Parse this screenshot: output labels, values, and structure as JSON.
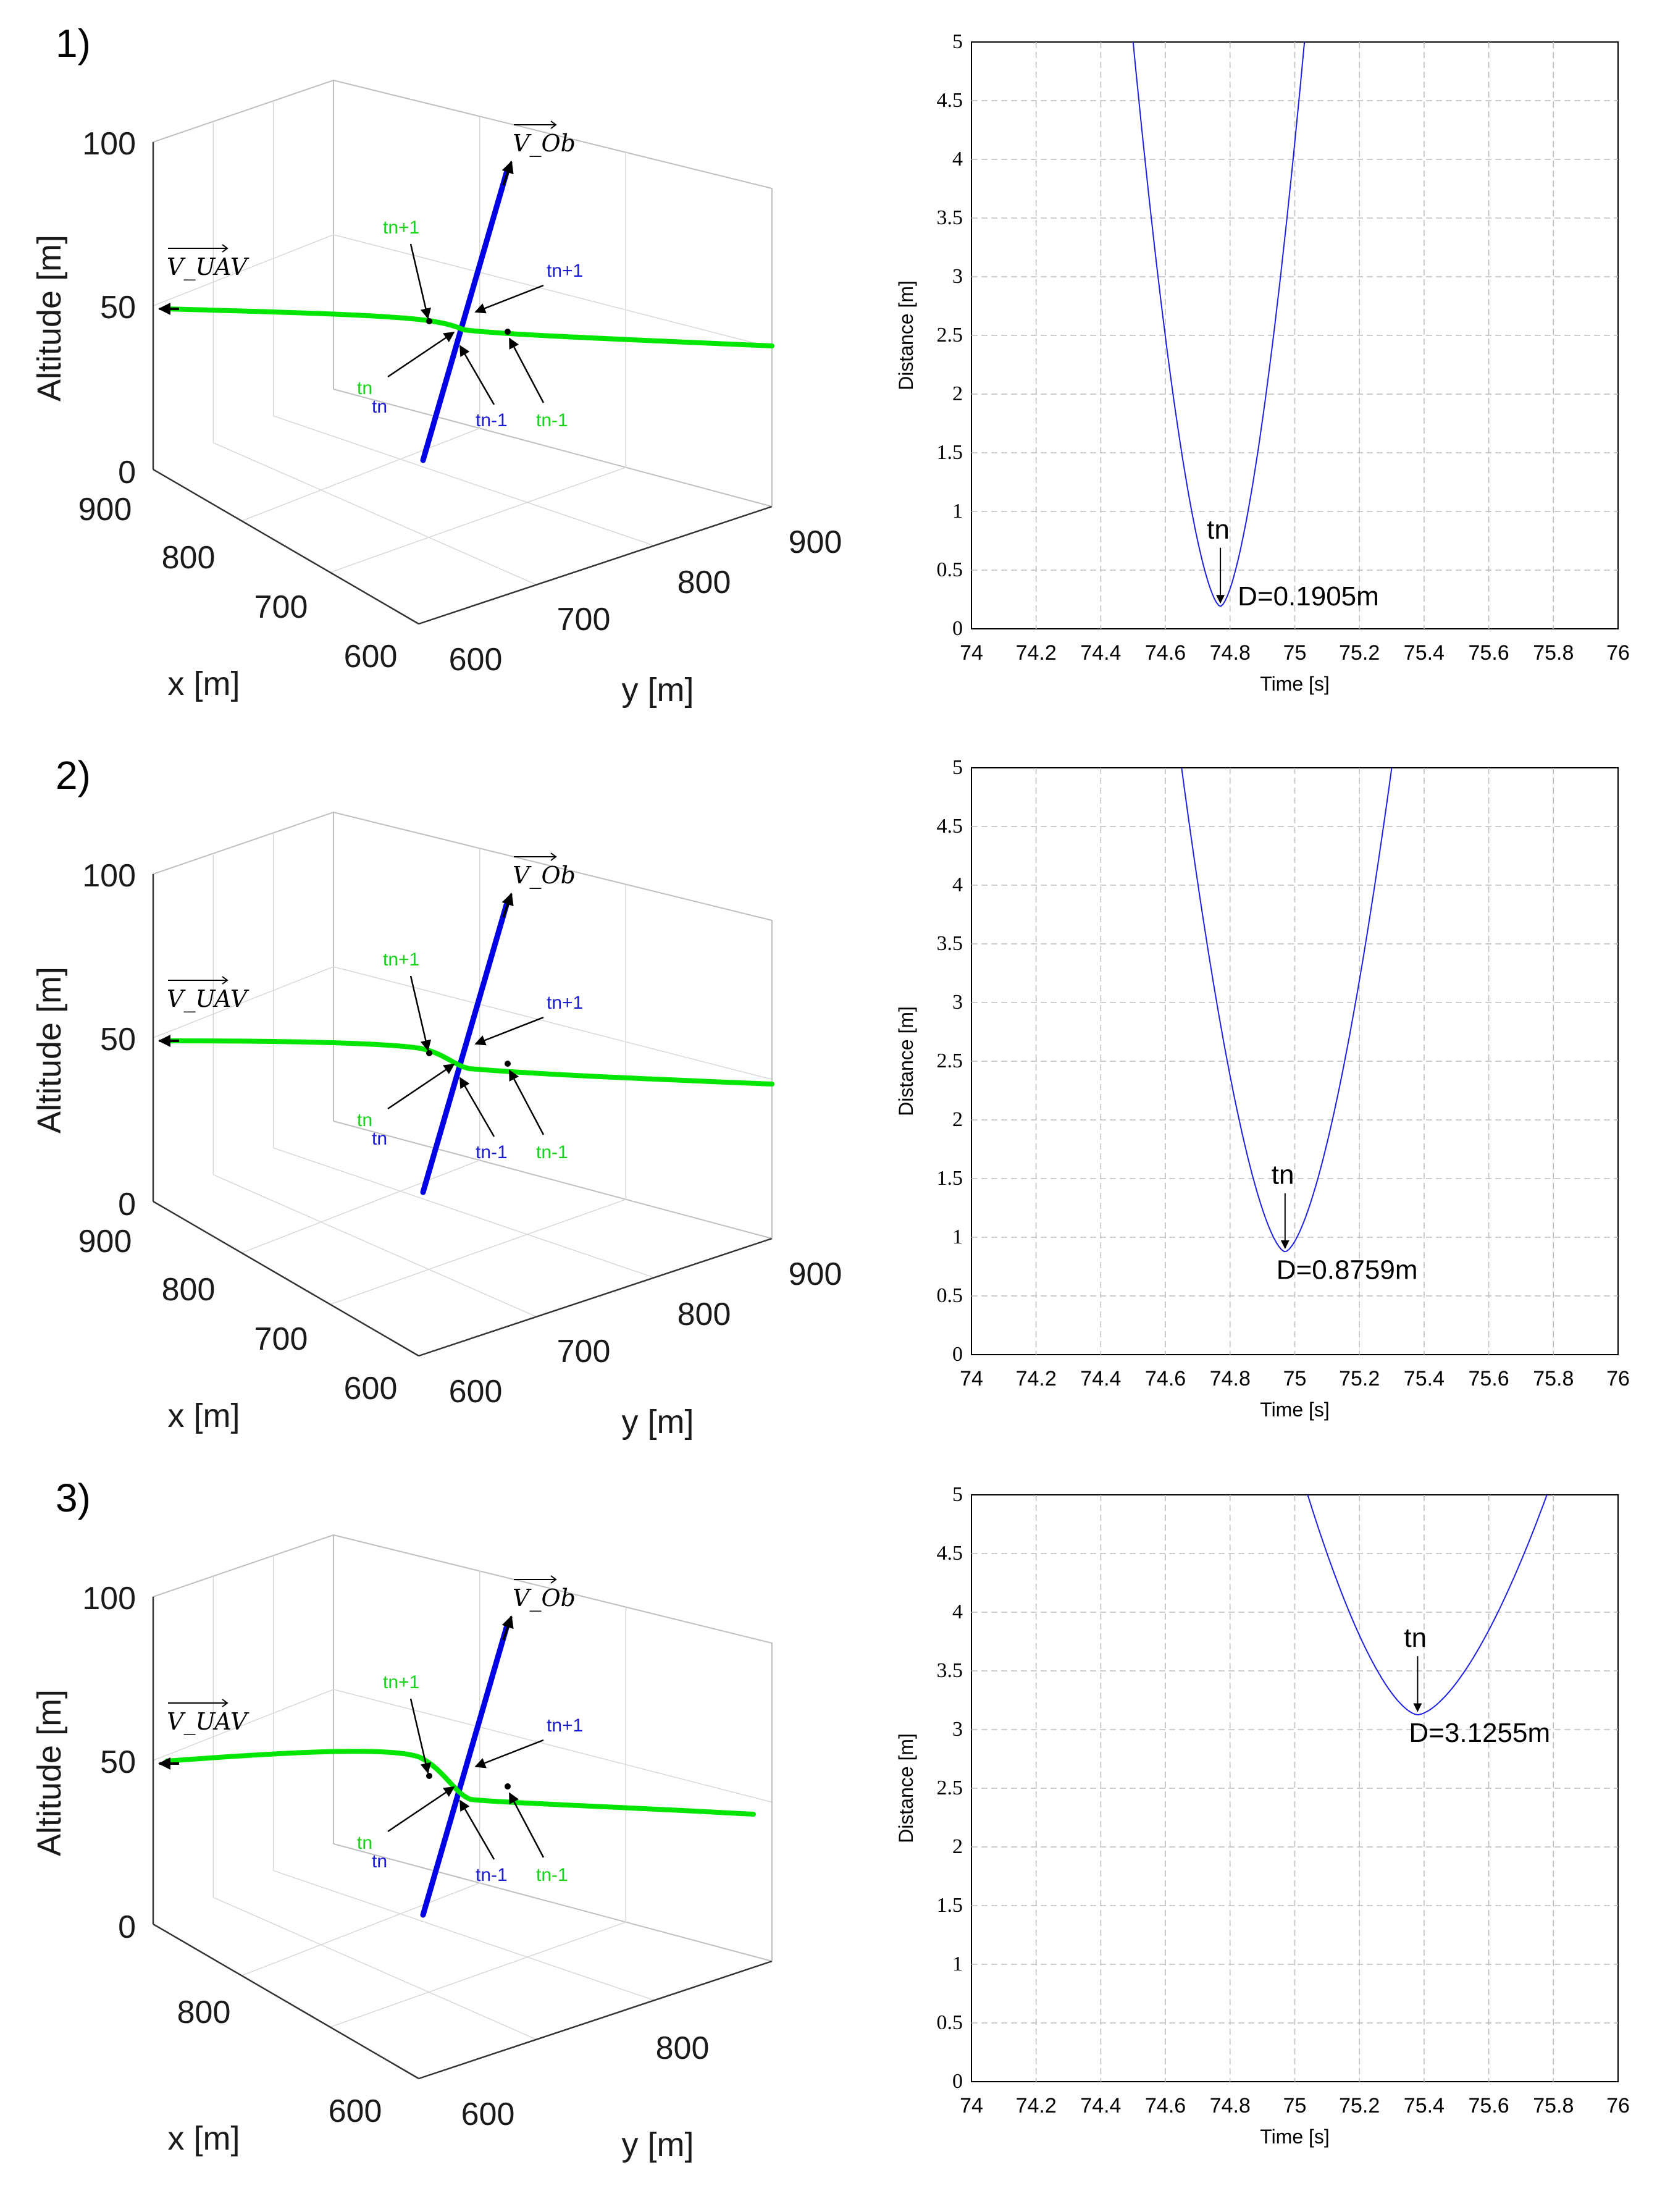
{
  "chart_data": [
    {
      "type": "line3d",
      "panel_label": "1)",
      "zlabel": "Altitude [m]",
      "xlabel": "x [m]",
      "ylabel": "y [m]",
      "zticks": [
        "0",
        "50",
        "100"
      ],
      "xticks": [
        "900",
        "800",
        "700",
        "600"
      ],
      "yticks": [
        "600",
        "700",
        "800",
        "900"
      ],
      "vectors": {
        "uav": "V_UAV",
        "obstacle": "V_Ob"
      },
      "annotations": {
        "green": [
          "tn+1",
          "tn",
          "tn-1"
        ],
        "blue": [
          "tn+1",
          "tn",
          "tn-1"
        ]
      },
      "series": [
        {
          "name": "UAV trajectory",
          "color": "#00e600"
        },
        {
          "name": "Obstacle trajectory",
          "color": "#0000e6"
        }
      ]
    },
    {
      "type": "line",
      "xlabel": "Time [s]",
      "ylabel": "Distance [m]",
      "xlim": [
        74,
        76
      ],
      "ylim": [
        0,
        5
      ],
      "xticks": [
        "74",
        "74.2",
        "74.4",
        "74.6",
        "74.8",
        "75",
        "75.2",
        "75.4",
        "75.6",
        "75.8",
        "76"
      ],
      "yticks": [
        "0",
        "0.5",
        "1",
        "1.5",
        "2",
        "2.5",
        "3",
        "3.5",
        "4",
        "4.5",
        "5"
      ],
      "curve": {
        "t_min": 74.77,
        "d_min": 0.1905,
        "t_left_at_5": 74.5,
        "t_right_at_5": 75.03
      },
      "min_point_label": "tn",
      "min_value_label": "D=0.1905m"
    },
    {
      "type": "line3d",
      "panel_label": "2)",
      "zlabel": "Altitude [m]",
      "xlabel": "x [m]",
      "ylabel": "y [m]",
      "zticks": [
        "0",
        "50",
        "100"
      ],
      "xticks": [
        "900",
        "800",
        "700",
        "600"
      ],
      "yticks": [
        "600",
        "700",
        "800",
        "900"
      ],
      "vectors": {
        "uav": "V_UAV",
        "obstacle": "V_Ob"
      },
      "annotations": {
        "green": [
          "tn+1",
          "tn",
          "tn-1"
        ],
        "blue": [
          "tn+1",
          "tn",
          "tn-1"
        ]
      },
      "series": [
        {
          "name": "UAV trajectory",
          "color": "#00e600"
        },
        {
          "name": "Obstacle trajectory",
          "color": "#0000e6"
        }
      ]
    },
    {
      "type": "line",
      "xlabel": "Time [s]",
      "ylabel": "Distance [m]",
      "xlim": [
        74,
        76
      ],
      "ylim": [
        0,
        5
      ],
      "xticks": [
        "74",
        "74.2",
        "74.4",
        "74.6",
        "74.8",
        "75",
        "75.2",
        "75.4",
        "75.6",
        "75.8",
        "76"
      ],
      "yticks": [
        "0",
        "0.5",
        "1",
        "1.5",
        "2",
        "2.5",
        "3",
        "3.5",
        "4",
        "4.5",
        "5"
      ],
      "curve": {
        "t_min": 74.97,
        "d_min": 0.8759,
        "t_left_at_5": 74.65,
        "t_right_at_5": 75.3
      },
      "min_point_label": "tn",
      "min_value_label": "D=0.8759m"
    },
    {
      "type": "line3d",
      "panel_label": "3)",
      "zlabel": "Altitude [m]",
      "xlabel": "x [m]",
      "ylabel": "y [m]",
      "zticks": [
        "0",
        "50",
        "100"
      ],
      "xticks": [
        "800",
        "600"
      ],
      "yticks": [
        "600",
        "800"
      ],
      "vectors": {
        "uav": "V_UAV",
        "obstacle": "V_Ob"
      },
      "annotations": {
        "green": [
          "tn+1",
          "tn",
          "tn-1"
        ],
        "blue": [
          "tn+1",
          "tn",
          "tn-1"
        ]
      },
      "series": [
        {
          "name": "UAV trajectory",
          "color": "#00e600"
        },
        {
          "name": "Obstacle trajectory",
          "color": "#0000e6"
        }
      ]
    },
    {
      "type": "line",
      "xlabel": "Time [s]",
      "ylabel": "Distance [m]",
      "xlim": [
        74,
        76
      ],
      "ylim": [
        0,
        5
      ],
      "xticks": [
        "74",
        "74.2",
        "74.4",
        "74.6",
        "74.8",
        "75",
        "75.2",
        "75.4",
        "75.6",
        "75.8",
        "76"
      ],
      "yticks": [
        "0",
        "0.5",
        "1",
        "1.5",
        "2",
        "2.5",
        "3",
        "3.5",
        "4",
        "4.5",
        "5"
      ],
      "curve": {
        "t_min": 75.38,
        "d_min": 3.1255,
        "t_left_at_5": 75.04,
        "t_right_at_5": 75.78
      },
      "min_point_label": "tn",
      "min_value_label": "D=3.1255m"
    }
  ]
}
